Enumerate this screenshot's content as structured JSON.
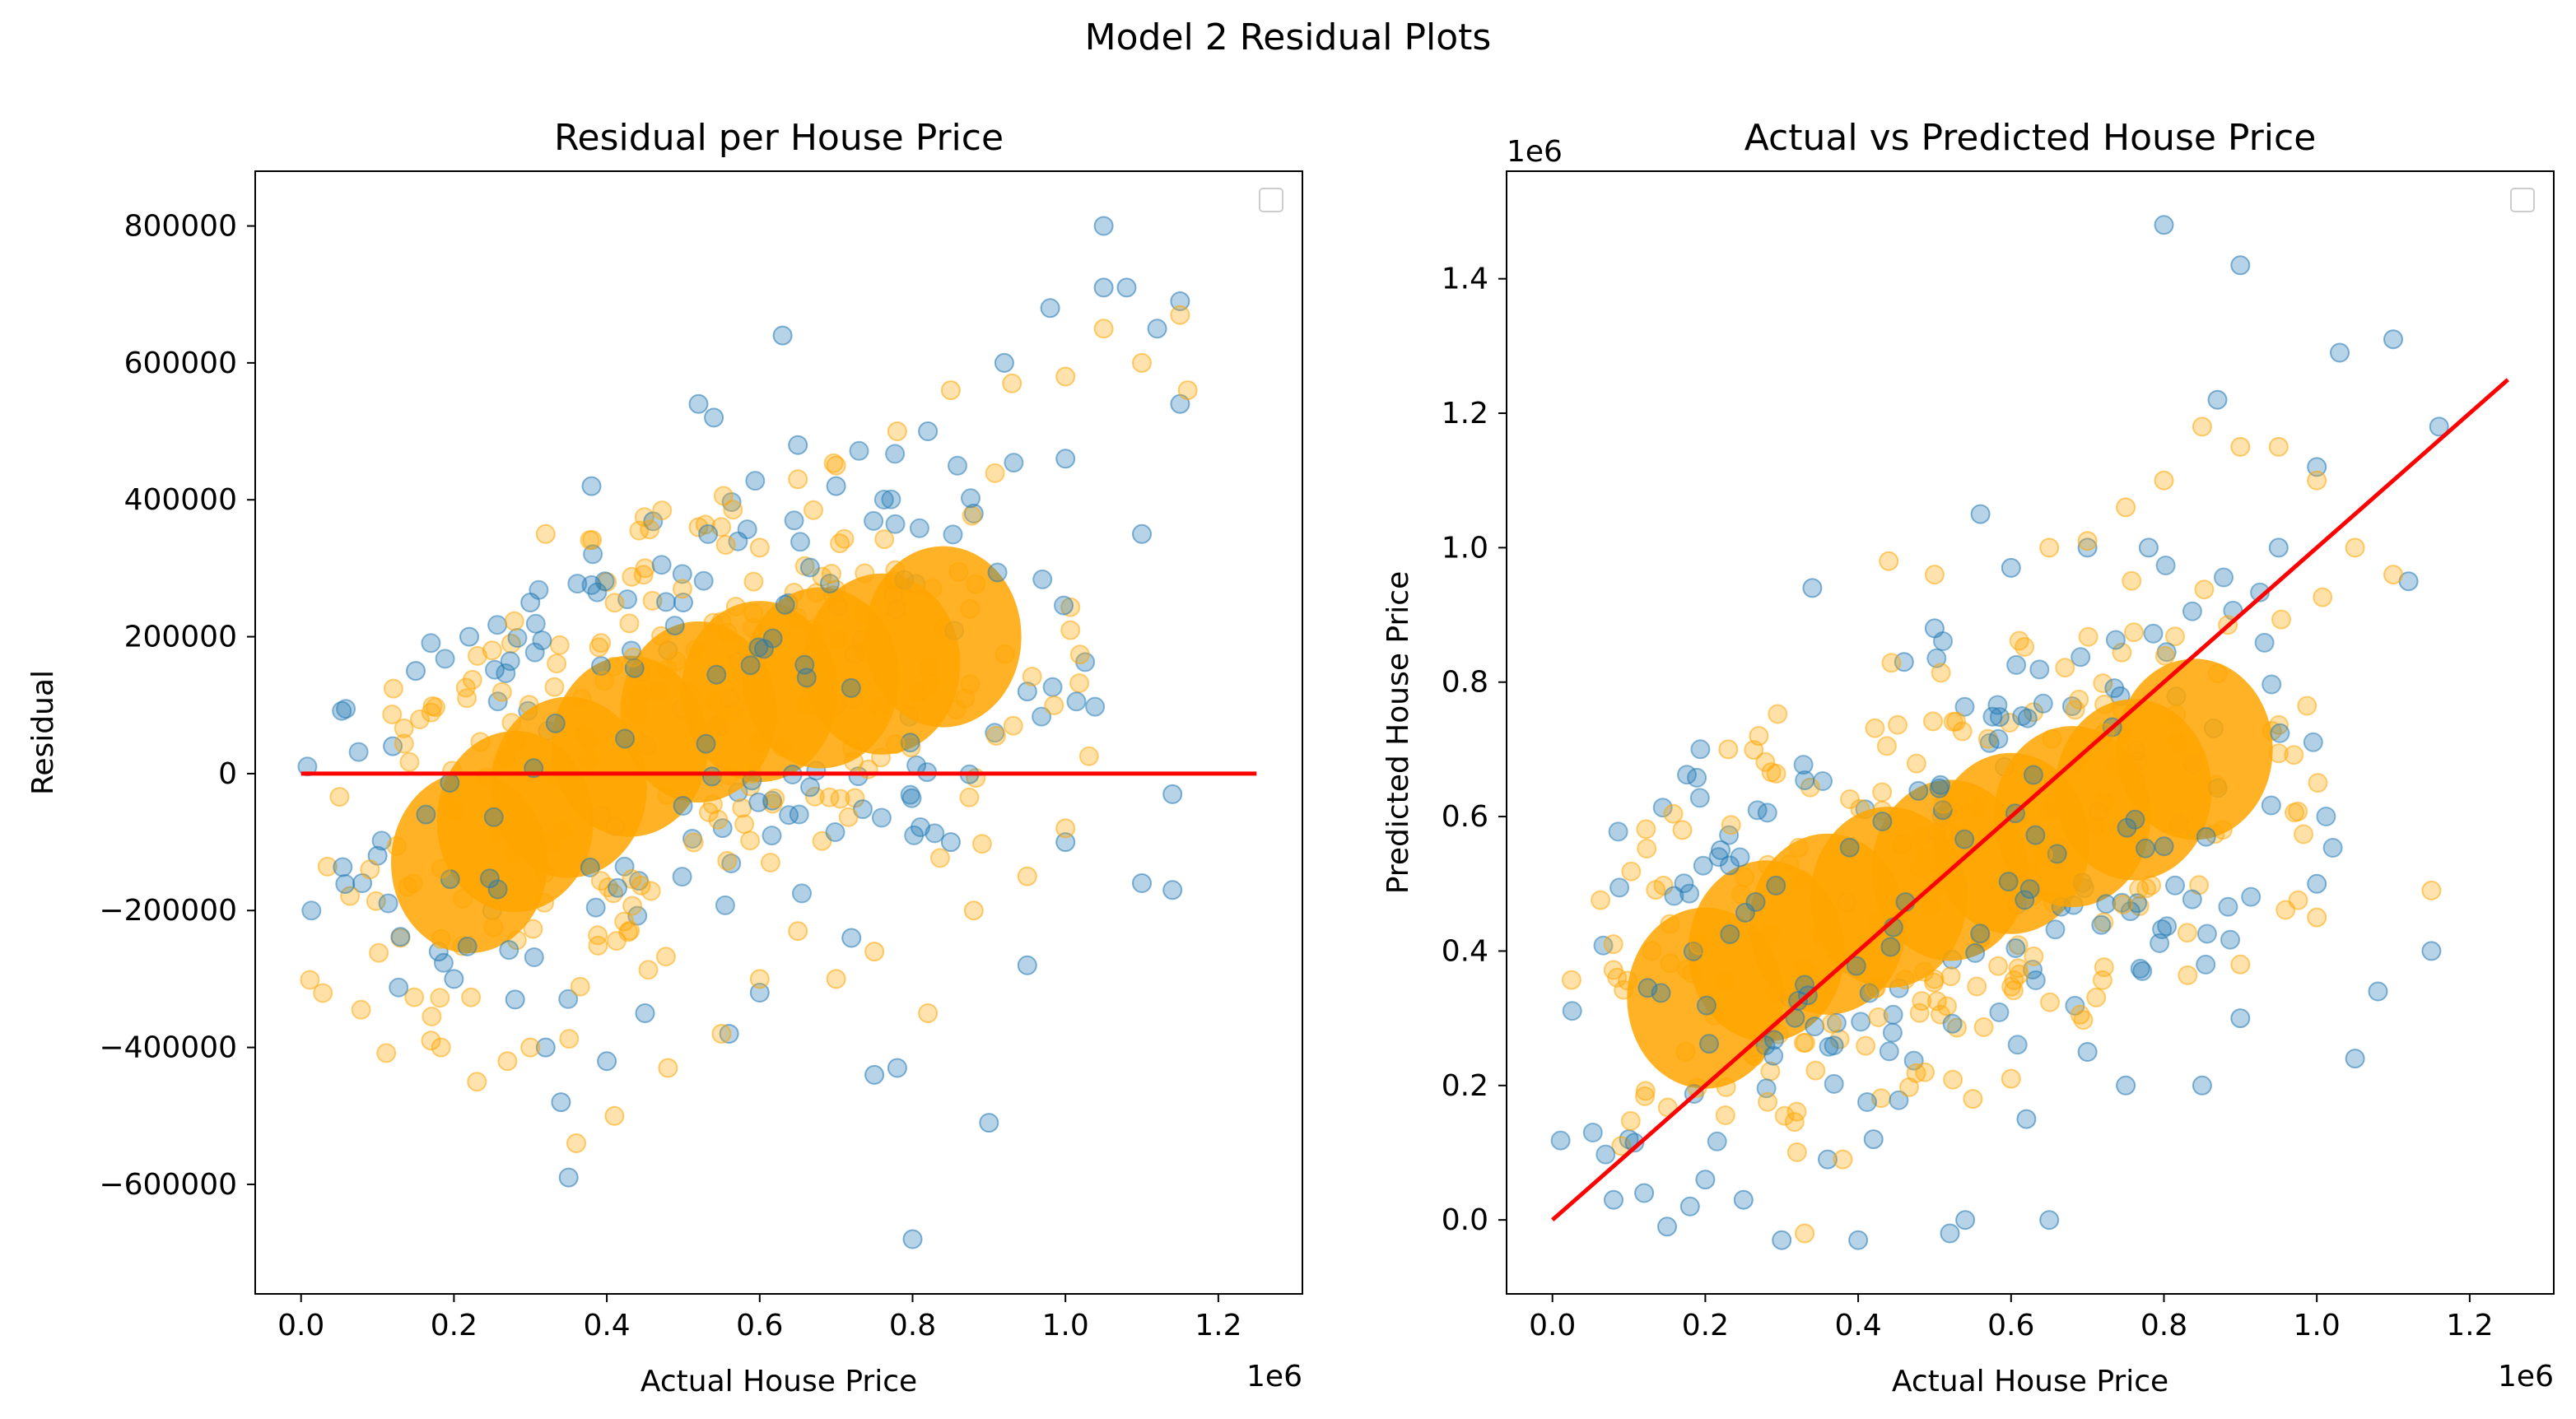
{
  "figure": {
    "suptitle": "Model 2 Residual Plots"
  },
  "colors": {
    "train": "#1f77b4",
    "test": "#ffa500",
    "line": "#ff0000"
  },
  "chart_data": [
    {
      "type": "scatter",
      "title": "Residual per House Price",
      "xlabel": "Actual House Price",
      "ylabel": "Residual",
      "x_offset_label": "1e6",
      "xlim": [
        -60000,
        1310000
      ],
      "ylim": [
        -760000,
        880000
      ],
      "xticks": [
        0,
        200000,
        400000,
        600000,
        800000,
        1000000,
        1200000
      ],
      "xtick_labels": [
        "0.0",
        "0.2",
        "0.4",
        "0.6",
        "0.8",
        "1.0",
        "1.2"
      ],
      "yticks": [
        -600000,
        -400000,
        -200000,
        0,
        200000,
        400000,
        600000,
        800000
      ],
      "ytick_labels": [
        "−600000",
        "−400000",
        "−200000",
        "0",
        "200000",
        "400000",
        "600000",
        "800000"
      ],
      "legend": "top-right (empty)",
      "series": [
        {
          "color": "#1f77b4",
          "points": [
            [
              80000,
              -160000
            ],
            [
              100000,
              -120000
            ],
            [
              120000,
              40000
            ],
            [
              150000,
              150000
            ],
            [
              180000,
              -260000
            ],
            [
              200000,
              -300000
            ],
            [
              220000,
              200000
            ],
            [
              250000,
              -200000
            ],
            [
              280000,
              -330000
            ],
            [
              300000,
              250000
            ],
            [
              320000,
              -400000
            ],
            [
              340000,
              -480000
            ],
            [
              350000,
              -590000
            ],
            [
              380000,
              420000
            ],
            [
              400000,
              -420000
            ],
            [
              450000,
              -350000
            ],
            [
              480000,
              180000
            ],
            [
              500000,
              250000
            ],
            [
              520000,
              540000
            ],
            [
              540000,
              520000
            ],
            [
              560000,
              -380000
            ],
            [
              600000,
              -320000
            ],
            [
              630000,
              640000
            ],
            [
              650000,
              480000
            ],
            [
              700000,
              420000
            ],
            [
              720000,
              -240000
            ],
            [
              750000,
              -440000
            ],
            [
              780000,
              -430000
            ],
            [
              800000,
              -680000
            ],
            [
              820000,
              500000
            ],
            [
              850000,
              -100000
            ],
            [
              880000,
              380000
            ],
            [
              900000,
              -510000
            ],
            [
              920000,
              600000
            ],
            [
              950000,
              -280000
            ],
            [
              980000,
              680000
            ],
            [
              1000000,
              460000
            ],
            [
              1050000,
              800000
            ],
            [
              1050000,
              710000
            ],
            [
              1080000,
              710000
            ],
            [
              1100000,
              -160000
            ],
            [
              1120000,
              650000
            ],
            [
              1140000,
              -170000
            ],
            [
              1150000,
              690000
            ],
            [
              1150000,
              540000
            ],
            [
              1140000,
              -30000
            ],
            [
              1100000,
              350000
            ],
            [
              1000000,
              -100000
            ],
            [
              950000,
              120000
            ],
            [
              700000,
              100000
            ]
          ]
        },
        {
          "color": "#ffa500",
          "points": [
            [
              90000,
              -140000
            ],
            [
              130000,
              -240000
            ],
            [
              170000,
              -390000
            ],
            [
              230000,
              -450000
            ],
            [
              270000,
              -420000
            ],
            [
              300000,
              -400000
            ],
            [
              360000,
              -540000
            ],
            [
              410000,
              -500000
            ],
            [
              480000,
              -430000
            ],
            [
              550000,
              -380000
            ],
            [
              600000,
              -300000
            ],
            [
              650000,
              -230000
            ],
            [
              700000,
              -300000
            ],
            [
              750000,
              -260000
            ],
            [
              820000,
              -350000
            ],
            [
              880000,
              -200000
            ],
            [
              950000,
              -150000
            ],
            [
              1000000,
              -80000
            ],
            [
              1050000,
              650000
            ],
            [
              1100000,
              600000
            ],
            [
              1150000,
              670000
            ],
            [
              1160000,
              560000
            ],
            [
              1000000,
              580000
            ],
            [
              930000,
              570000
            ],
            [
              850000,
              560000
            ],
            [
              780000,
              500000
            ],
            [
              700000,
              450000
            ],
            [
              650000,
              430000
            ],
            [
              600000,
              330000
            ],
            [
              520000,
              360000
            ],
            [
              450000,
              300000
            ],
            [
              400000,
              280000
            ],
            [
              320000,
              350000
            ],
            [
              250000,
              180000
            ]
          ]
        },
        {
          "color": "#ffa500",
          "density_core": [
            [
              220000,
              -130000
            ],
            [
              280000,
              -70000
            ],
            [
              350000,
              -20000
            ],
            [
              430000,
              40000
            ],
            [
              520000,
              90000
            ],
            [
              600000,
              120000
            ],
            [
              680000,
              140000
            ],
            [
              760000,
              160000
            ],
            [
              840000,
              200000
            ]
          ]
        }
      ],
      "reference_line": {
        "x": [
          0,
          1250000
        ],
        "y": [
          0,
          0
        ]
      }
    },
    {
      "type": "scatter",
      "title": "Actual vs Predicted House Price",
      "xlabel": "Actual House Price",
      "ylabel": "Predicted House Price",
      "x_offset_label": "1e6",
      "y_offset_label": "1e6",
      "xlim": [
        -60000,
        1310000
      ],
      "ylim": [
        -110000,
        1560000
      ],
      "xticks": [
        0,
        200000,
        400000,
        600000,
        800000,
        1000000,
        1200000
      ],
      "xtick_labels": [
        "0.0",
        "0.2",
        "0.4",
        "0.6",
        "0.8",
        "1.0",
        "1.2"
      ],
      "yticks": [
        0,
        200000,
        400000,
        600000,
        800000,
        1000000,
        1200000,
        1400000
      ],
      "ytick_labels": [
        "0.0",
        "0.2",
        "0.4",
        "0.6",
        "0.8",
        "1.0",
        "1.2",
        "1.4"
      ],
      "legend": "top-right (empty)",
      "series": [
        {
          "color": "#1f77b4",
          "points": [
            [
              80000,
              30000
            ],
            [
              100000,
              120000
            ],
            [
              120000,
              40000
            ],
            [
              150000,
              -10000
            ],
            [
              180000,
              20000
            ],
            [
              200000,
              60000
            ],
            [
              220000,
              550000
            ],
            [
              250000,
              30000
            ],
            [
              300000,
              -30000
            ],
            [
              340000,
              940000
            ],
            [
              360000,
              90000
            ],
            [
              400000,
              -30000
            ],
            [
              420000,
              120000
            ],
            [
              460000,
              830000
            ],
            [
              500000,
              880000
            ],
            [
              520000,
              -20000
            ],
            [
              540000,
              0
            ],
            [
              560000,
              1050000
            ],
            [
              600000,
              970000
            ],
            [
              620000,
              150000
            ],
            [
              650000,
              0
            ],
            [
              700000,
              1000000
            ],
            [
              750000,
              200000
            ],
            [
              780000,
              1000000
            ],
            [
              800000,
              1480000
            ],
            [
              850000,
              200000
            ],
            [
              870000,
              1220000
            ],
            [
              900000,
              1420000
            ],
            [
              950000,
              1000000
            ],
            [
              1000000,
              1120000
            ],
            [
              1030000,
              1290000
            ],
            [
              1050000,
              240000
            ],
            [
              1080000,
              340000
            ],
            [
              1100000,
              1310000
            ],
            [
              1120000,
              950000
            ],
            [
              1150000,
              400000
            ],
            [
              1160000,
              1180000
            ],
            [
              1000000,
              500000
            ],
            [
              900000,
              300000
            ],
            [
              700000,
              250000
            ]
          ]
        },
        {
          "color": "#ffa500",
          "points": [
            [
              90000,
              110000
            ],
            [
              130000,
              400000
            ],
            [
              170000,
              580000
            ],
            [
              230000,
              700000
            ],
            [
              270000,
              720000
            ],
            [
              330000,
              -20000
            ],
            [
              380000,
              90000
            ],
            [
              440000,
              980000
            ],
            [
              500000,
              960000
            ],
            [
              550000,
              180000
            ],
            [
              600000,
              210000
            ],
            [
              650000,
              1000000
            ],
            [
              700000,
              1010000
            ],
            [
              750000,
              1060000
            ],
            [
              800000,
              1100000
            ],
            [
              850000,
              1180000
            ],
            [
              900000,
              1150000
            ],
            [
              950000,
              1150000
            ],
            [
              1000000,
              1100000
            ],
            [
              1050000,
              1000000
            ],
            [
              1100000,
              960000
            ],
            [
              1150000,
              490000
            ],
            [
              1000000,
              450000
            ],
            [
              900000,
              380000
            ]
          ]
        },
        {
          "color": "#ffa500",
          "density_core": [
            [
              200000,
              330000
            ],
            [
              280000,
              400000
            ],
            [
              360000,
              440000
            ],
            [
              440000,
              480000
            ],
            [
              520000,
              520000
            ],
            [
              600000,
              560000
            ],
            [
              680000,
              600000
            ],
            [
              760000,
              640000
            ],
            [
              840000,
              700000
            ]
          ]
        }
      ],
      "reference_line": {
        "x": [
          0,
          1250000
        ],
        "y": [
          0,
          1250000
        ]
      }
    }
  ]
}
